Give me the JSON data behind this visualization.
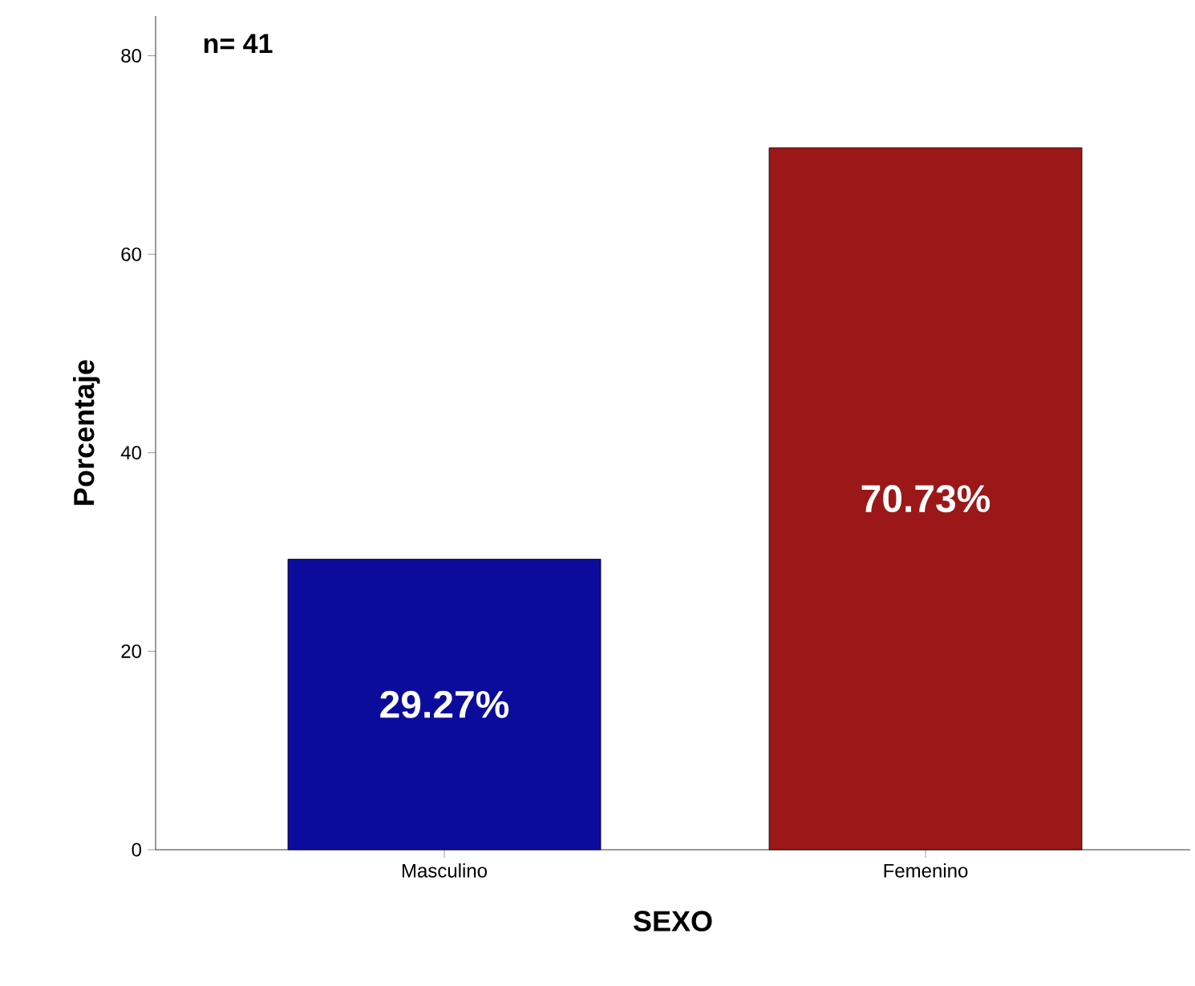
{
  "chart_data": {
    "type": "bar",
    "xlabel": "SEXO",
    "ylabel": "Porcentaje",
    "categories": [
      "Masculino",
      "Femenino"
    ],
    "values": [
      29.27,
      70.73
    ],
    "colors": [
      "#0c0c9c",
      "#9c1818"
    ],
    "value_labels": [
      "29.27%",
      "70.73%"
    ],
    "annotations": [
      "n= 41"
    ],
    "ylim": [
      0,
      84
    ],
    "yticks": [
      0,
      20,
      40,
      60,
      80
    ],
    "grid": false
  }
}
